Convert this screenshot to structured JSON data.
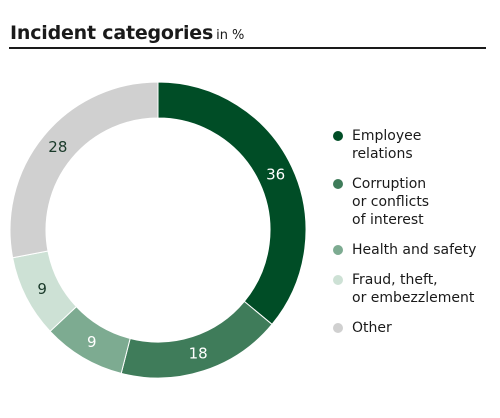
{
  "chart_data": {
    "type": "pie",
    "title": "Incident categories",
    "unit": "in %",
    "categories": [
      "Employee\nrelations",
      "Corruption\nor conflicts\nof interest",
      "Health and safety",
      "Fraud, theft,\nor embezzlement",
      "Other"
    ],
    "values": [
      36,
      18,
      9,
      9,
      28
    ],
    "colors": [
      "#004d26",
      "#3f7c5a",
      "#7dab91",
      "#cde1d5",
      "#d0d0d0"
    ],
    "label_colors": [
      "#ffffff",
      "#ffffff",
      "#ffffff",
      "#1a3a2a",
      "#1a3a2a"
    ],
    "legend_position": "right",
    "donut": true
  }
}
